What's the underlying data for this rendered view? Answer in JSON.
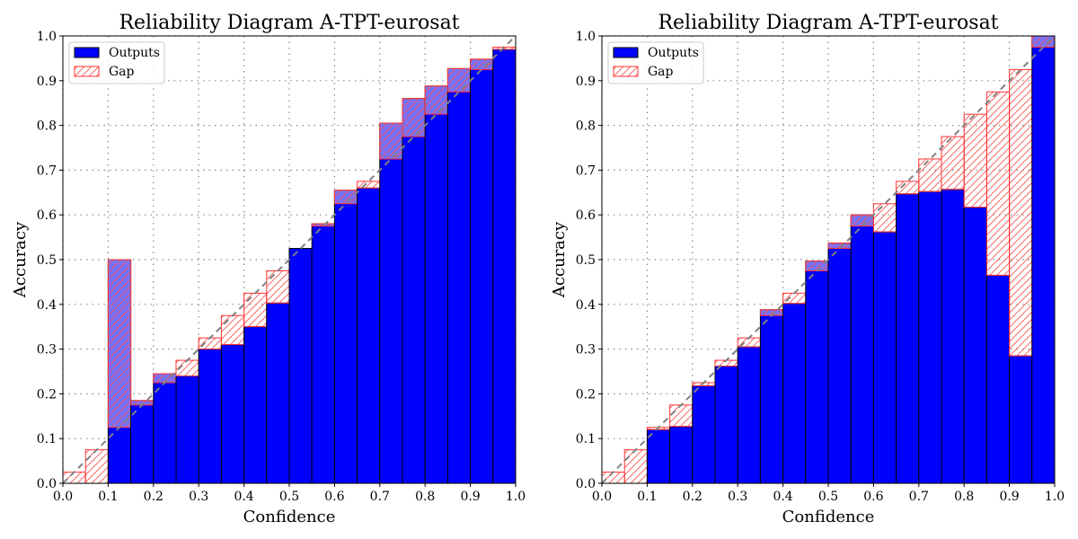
{
  "chart_data": [
    {
      "type": "bar",
      "title": "Reliability Diagram A-TPT-eurosat",
      "xlabel": "Confidence",
      "ylabel": "Accuracy",
      "xlim": [
        0,
        1
      ],
      "ylim": [
        0,
        1
      ],
      "xticks": [
        "0.0",
        "0.1",
        "0.2",
        "0.3",
        "0.4",
        "0.5",
        "0.6",
        "0.7",
        "0.8",
        "0.9",
        "1.0"
      ],
      "yticks": [
        "0.0",
        "0.1",
        "0.2",
        "0.3",
        "0.4",
        "0.5",
        "0.6",
        "0.7",
        "0.8",
        "0.9",
        "1.0"
      ],
      "grid": true,
      "legend": {
        "position": "top-left",
        "entries": [
          "Outputs",
          "Gap"
        ]
      },
      "bin_width": 0.05,
      "bin_centers": [
        0.025,
        0.075,
        0.125,
        0.175,
        0.225,
        0.275,
        0.325,
        0.375,
        0.425,
        0.475,
        0.525,
        0.575,
        0.625,
        0.675,
        0.725,
        0.775,
        0.825,
        0.875,
        0.925,
        0.975
      ],
      "series": [
        {
          "name": "Outputs",
          "values": [
            0.0,
            0.0,
            0.5,
            0.185,
            0.245,
            0.24,
            0.3,
            0.31,
            0.35,
            0.403,
            0.525,
            0.58,
            0.655,
            0.66,
            0.805,
            0.86,
            0.888,
            0.927,
            0.948,
            0.97
          ]
        }
      ]
    },
    {
      "type": "bar",
      "title": "Reliability Diagram A-TPT-eurosat",
      "xlabel": "Confidence",
      "ylabel": "Accuracy",
      "xlim": [
        0,
        1
      ],
      "ylim": [
        0,
        1
      ],
      "xticks": [
        "0.0",
        "0.1",
        "0.2",
        "0.3",
        "0.4",
        "0.5",
        "0.6",
        "0.7",
        "0.8",
        "0.9",
        "1.0"
      ],
      "yticks": [
        "0.0",
        "0.1",
        "0.2",
        "0.3",
        "0.4",
        "0.5",
        "0.6",
        "0.7",
        "0.8",
        "0.9",
        "1.0"
      ],
      "grid": true,
      "legend": {
        "position": "top-left",
        "entries": [
          "Outputs",
          "Gap"
        ]
      },
      "bin_width": 0.05,
      "bin_centers": [
        0.025,
        0.075,
        0.125,
        0.175,
        0.225,
        0.275,
        0.325,
        0.375,
        0.425,
        0.475,
        0.525,
        0.575,
        0.625,
        0.675,
        0.725,
        0.775,
        0.825,
        0.875,
        0.925,
        0.975
      ],
      "series": [
        {
          "name": "Outputs",
          "values": [
            0.0,
            0.0,
            0.12,
            0.127,
            0.218,
            0.262,
            0.305,
            0.388,
            0.402,
            0.497,
            0.537,
            0.6,
            0.562,
            0.647,
            0.652,
            0.657,
            0.617,
            0.465,
            0.285,
            1.0
          ]
        }
      ]
    }
  ],
  "colors": {
    "outputs_fill": "#0000ff",
    "gap_edge": "#ff3333",
    "diagonal": "#808080",
    "grid": "#888888"
  }
}
